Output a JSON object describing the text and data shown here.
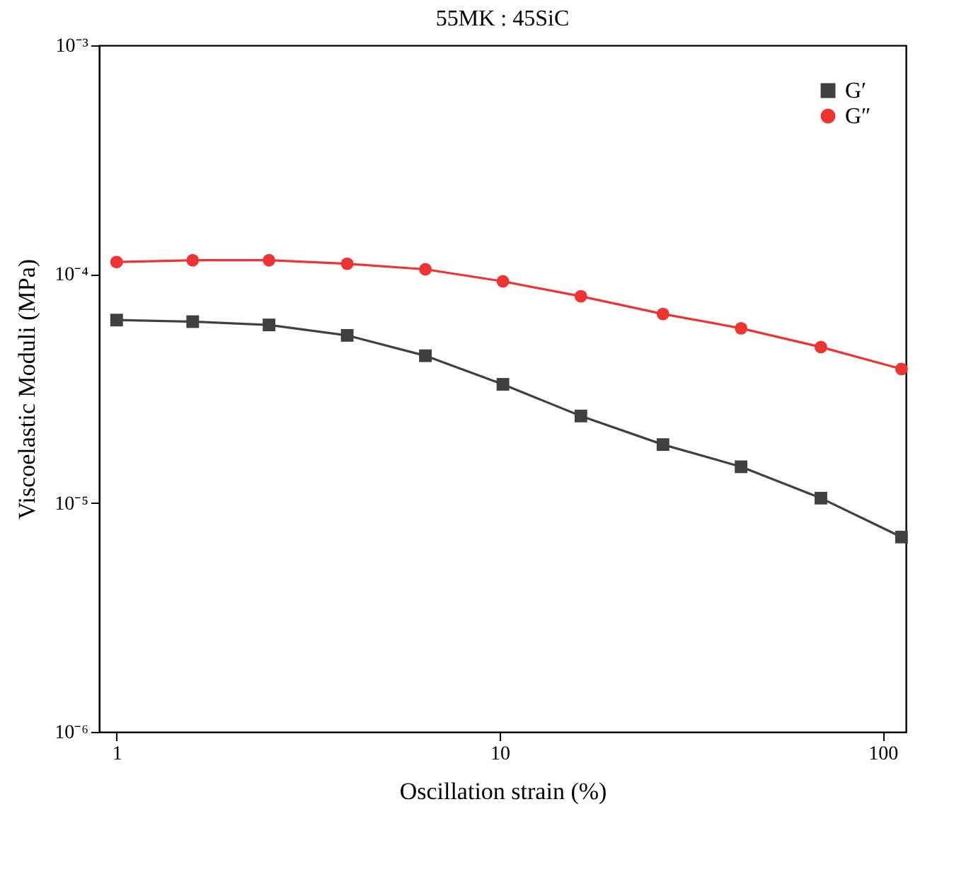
{
  "chart_data": {
    "type": "line",
    "title": "55MK : 45SiC",
    "xlabel": "Oscillation strain (%)",
    "ylabel": "Viscoelastic Moduli (MPa)",
    "x": [
      1,
      1.58,
      2.5,
      4,
      6.4,
      10.2,
      16.3,
      26.7,
      42.7,
      69,
      112
    ],
    "series": [
      {
        "name": "G′",
        "color": "#404040",
        "marker": "square",
        "values": [
          6.3e-05,
          6.2e-05,
          6e-05,
          5.4e-05,
          4.4e-05,
          3.3e-05,
          2.4e-05,
          1.8e-05,
          1.44e-05,
          1.05e-05,
          7.1e-06
        ]
      },
      {
        "name": "G″",
        "color": "#ee3333",
        "marker": "circle",
        "values": [
          0.000113,
          0.000115,
          0.000115,
          0.000111,
          0.000105,
          9.3e-05,
          8e-05,
          6.7e-05,
          5.8e-05,
          4.8e-05,
          3.85e-05
        ]
      }
    ],
    "log": "xy",
    "xlim": [
      0.9,
      115
    ],
    "xticks": [
      1,
      10,
      100
    ],
    "ylim": [
      1e-06,
      0.001
    ],
    "yticks": [
      {
        "value": 1e-06,
        "label": "10⁻⁶"
      },
      {
        "value": 1e-05,
        "label": "10⁻⁵"
      },
      {
        "value": 0.0001,
        "label": "10⁻⁴"
      },
      {
        "value": 0.001,
        "label": "10⁻³"
      }
    ],
    "grid": false,
    "legend": "top right",
    "line_style": "solid"
  }
}
